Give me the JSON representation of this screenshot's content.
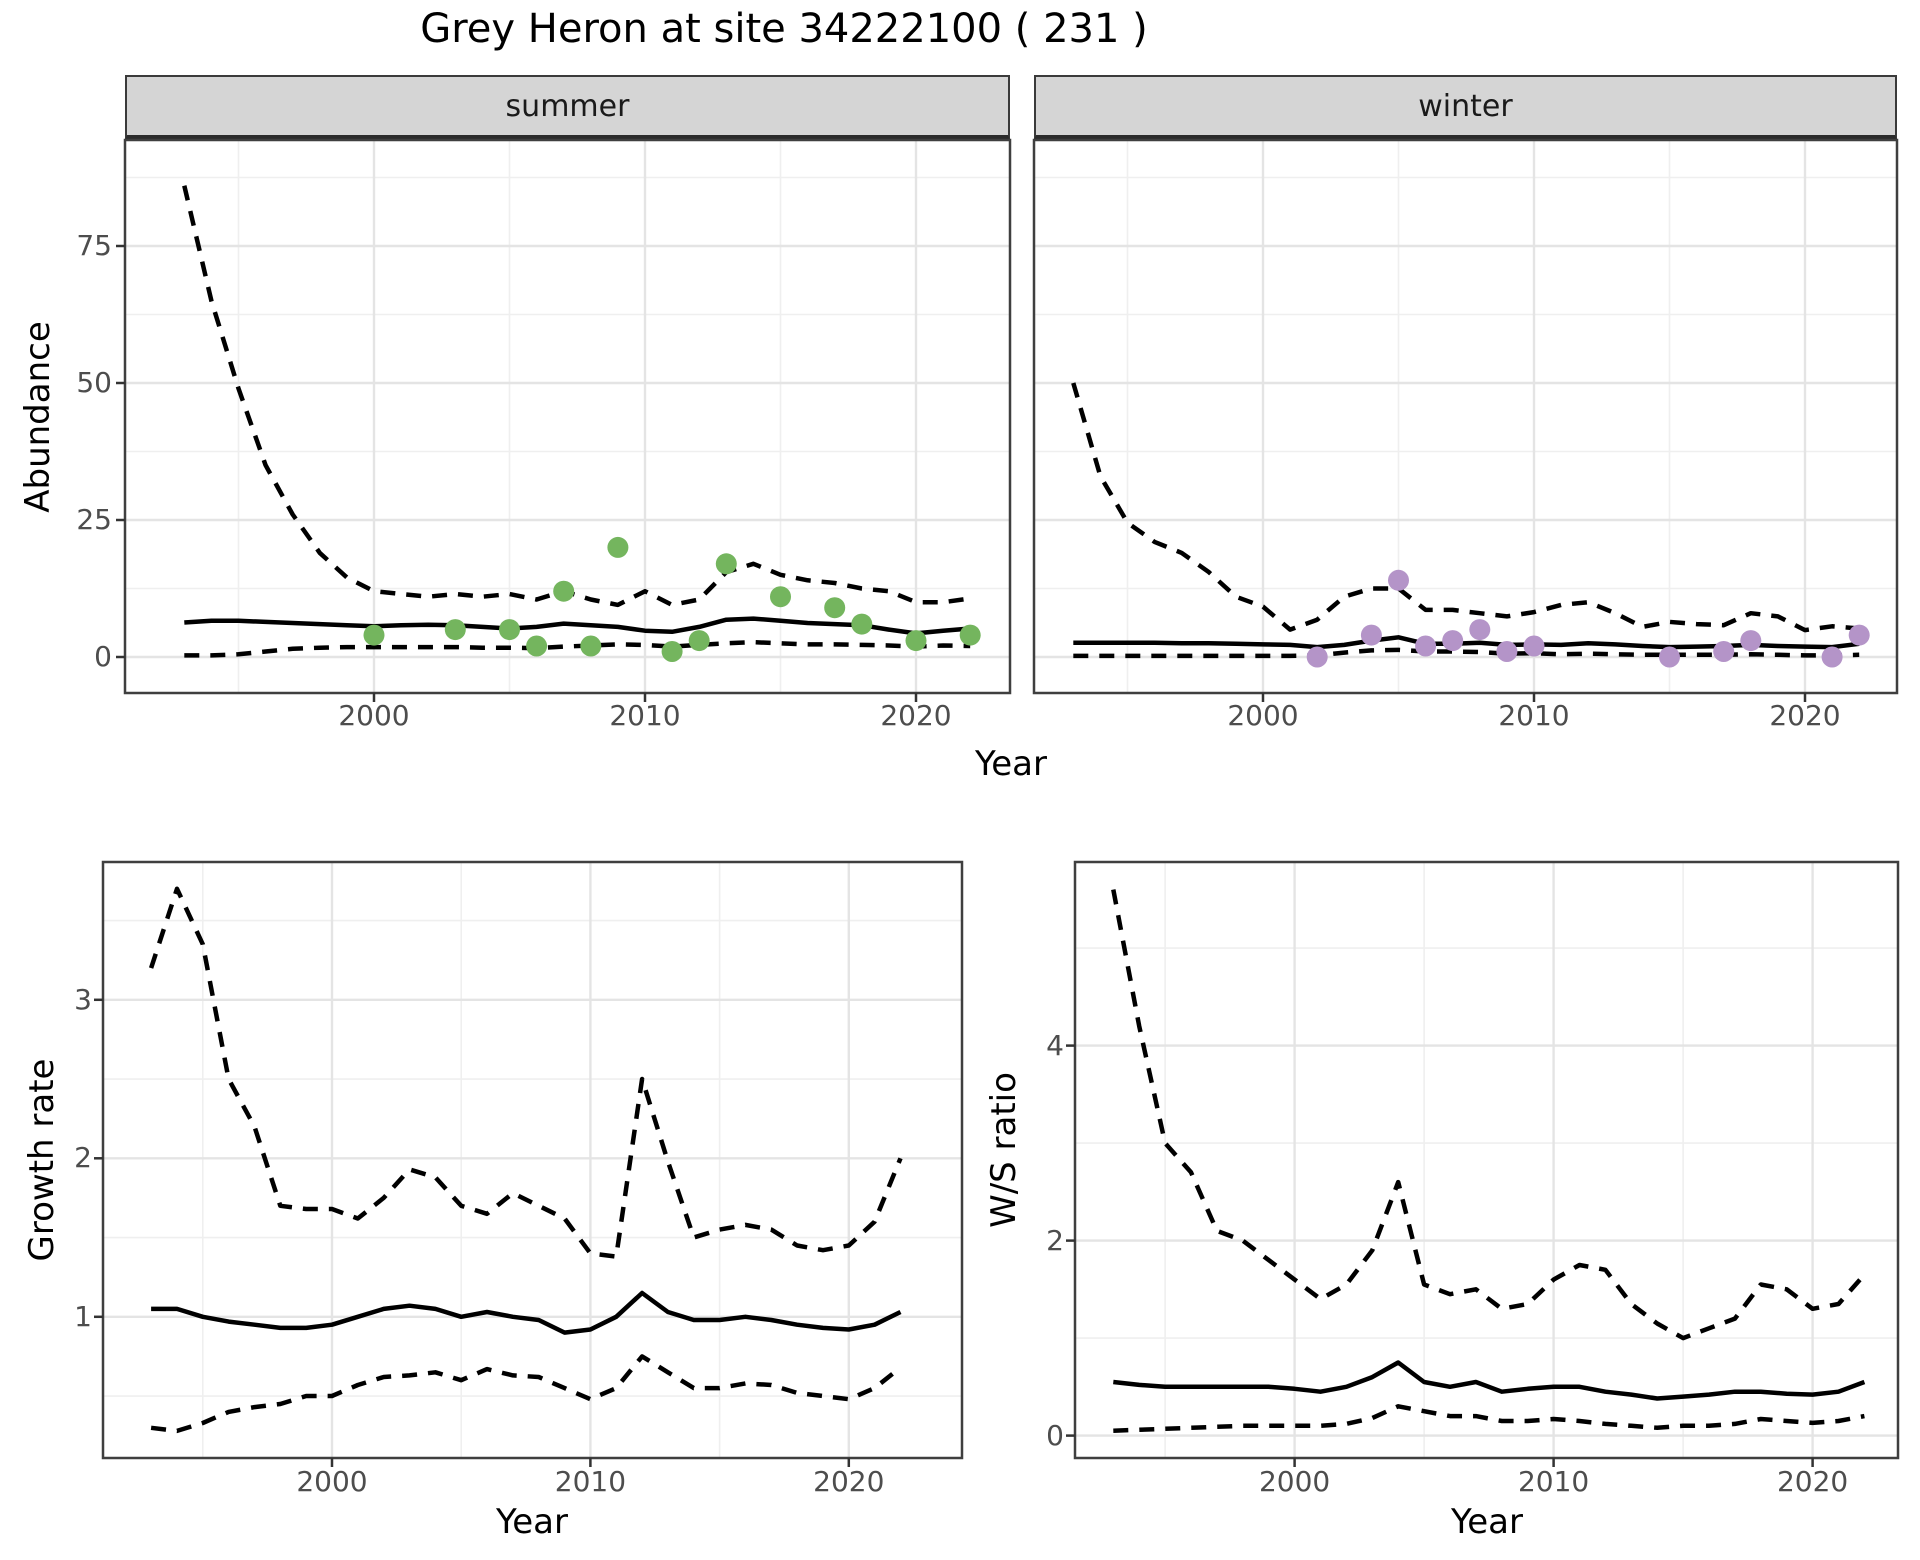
{
  "title": "Grey Heron at site 34222100 ( 231 )",
  "colors": {
    "summer_points": "#74b55e",
    "winter_points": "#b494c8",
    "line": "#000000",
    "grid_major": "#e4e4e4",
    "grid_minor": "#efefef",
    "panel_border": "#3f3f3f",
    "strip_bg": "#d5d5d5",
    "tick_text": "#4d4d4d"
  },
  "chart_data": [
    {
      "type": "line",
      "key": "abundance-summer",
      "facet": "summer",
      "ylabel": "Abundance",
      "xlabel": "Year",
      "x_ticks": [
        2000,
        2010,
        2020
      ],
      "y_ticks": [
        0,
        25,
        50,
        75
      ],
      "xlim": [
        1990.8,
        2023.5
      ],
      "ylim": [
        -6.6,
        94.3
      ],
      "grid": true,
      "legend": "none",
      "x": [
        1993,
        1994,
        1995,
        1996,
        1997,
        1998,
        1999,
        2000,
        2001,
        2002,
        2003,
        2004,
        2005,
        2006,
        2007,
        2008,
        2009,
        2010,
        2011,
        2012,
        2013,
        2014,
        2015,
        2016,
        2017,
        2018,
        2019,
        2020,
        2021,
        2022
      ],
      "series": [
        {
          "name": "upper-95-ci",
          "style": "dashed",
          "values": [
            86,
            65,
            49,
            35,
            26,
            19,
            14.5,
            12,
            11.5,
            11,
            11.5,
            11,
            11.5,
            10.5,
            12,
            10.5,
            9.5,
            12,
            9.5,
            10.5,
            15.5,
            17,
            15,
            14,
            13.5,
            12.5,
            12,
            10,
            10,
            10.7
          ]
        },
        {
          "name": "median-estimate",
          "style": "solid",
          "values": [
            6.3,
            6.6,
            6.6,
            6.4,
            6.2,
            6.0,
            5.8,
            5.6,
            5.8,
            5.9,
            5.8,
            5.5,
            5.2,
            5.5,
            6.1,
            5.8,
            5.5,
            4.8,
            4.6,
            5.5,
            6.8,
            7.0,
            6.6,
            6.2,
            6.0,
            5.8,
            5.0,
            4.3,
            4.8,
            5.2
          ]
        },
        {
          "name": "lower-95-ci",
          "style": "dashed",
          "values": [
            0.3,
            0.3,
            0.5,
            1.0,
            1.5,
            1.7,
            1.8,
            1.8,
            1.8,
            1.8,
            1.8,
            1.7,
            1.7,
            1.6,
            1.9,
            2.1,
            2.3,
            2.2,
            1.9,
            2.2,
            2.5,
            2.7,
            2.5,
            2.3,
            2.3,
            2.2,
            2.1,
            1.9,
            2.1,
            2.0
          ]
        }
      ],
      "points": {
        "name": "observed-abundance",
        "color": "#74b55e",
        "x": [
          2000,
          2003,
          2005,
          2006,
          2007,
          2008,
          2009,
          2011,
          2012,
          2013,
          2015,
          2017,
          2018,
          2020,
          2022
        ],
        "y": [
          4,
          5,
          5,
          2,
          12,
          2,
          20,
          1,
          3,
          17,
          11,
          9,
          6,
          3,
          4
        ]
      }
    },
    {
      "type": "line",
      "key": "abundance-winter",
      "facet": "winter",
      "ylabel": "Abundance",
      "xlabel": "Year",
      "x_ticks": [
        2000,
        2010,
        2020
      ],
      "y_ticks": [
        0,
        25,
        50,
        75
      ],
      "xlim": [
        1990.8,
        2023.5
      ],
      "ylim": [
        -6.6,
        94.3
      ],
      "grid": true,
      "legend": "none",
      "x": [
        1993,
        1994,
        1995,
        1996,
        1997,
        1998,
        1999,
        2000,
        2001,
        2002,
        2003,
        2004,
        2005,
        2006,
        2007,
        2008,
        2009,
        2010,
        2011,
        2012,
        2013,
        2014,
        2015,
        2016,
        2017,
        2018,
        2019,
        2020,
        2021,
        2022
      ],
      "series": [
        {
          "name": "upper-95-ci",
          "style": "dashed",
          "values": [
            50,
            33,
            24.5,
            21,
            19,
            15.5,
            11,
            9.2,
            5,
            6.8,
            11,
            12.5,
            12.5,
            8.6,
            8.6,
            8,
            7.4,
            8.2,
            9.5,
            10,
            8,
            5.5,
            6.4,
            6,
            5.8,
            8,
            7.4,
            4.9,
            5.6,
            5.2
          ]
        },
        {
          "name": "median-estimate",
          "style": "solid",
          "values": [
            2.6,
            2.6,
            2.6,
            2.6,
            2.5,
            2.5,
            2.4,
            2.3,
            2.2,
            1.8,
            2.2,
            3.0,
            3.6,
            2.4,
            2.4,
            2.6,
            2.2,
            2.3,
            2.2,
            2.5,
            2.3,
            2.0,
            1.8,
            1.9,
            2.0,
            2.2,
            2.0,
            1.9,
            1.8,
            2.4
          ]
        },
        {
          "name": "lower-95-ci",
          "style": "dashed",
          "values": [
            0.2,
            0.2,
            0.2,
            0.2,
            0.2,
            0.2,
            0.2,
            0.2,
            0.2,
            0.3,
            0.8,
            1.2,
            1.3,
            1.0,
            1.0,
            0.9,
            0.6,
            0.7,
            0.5,
            0.6,
            0.5,
            0.4,
            0.4,
            0.4,
            0.4,
            0.5,
            0.4,
            0.3,
            0.3,
            0.4
          ]
        }
      ],
      "points": {
        "name": "observed-abundance",
        "color": "#b494c8",
        "x": [
          2002,
          2004,
          2005,
          2006,
          2007,
          2008,
          2009,
          2010,
          2015,
          2017,
          2018,
          2021,
          2022
        ],
        "y": [
          0,
          4,
          14,
          2,
          3,
          5,
          1,
          2,
          0,
          1,
          3,
          0,
          4
        ]
      }
    },
    {
      "type": "line",
      "key": "growth-rate",
      "facet": "",
      "ylabel": "Growth rate",
      "xlabel": "Year",
      "x_ticks": [
        2000,
        2010,
        2020
      ],
      "y_ticks": [
        1,
        2,
        3
      ],
      "xlim": [
        1991.1,
        2024.4
      ],
      "ylim": [
        0.11,
        3.87
      ],
      "grid": true,
      "legend": "none",
      "x": [
        1993,
        1994,
        1995,
        1996,
        1997,
        1998,
        1999,
        2000,
        2001,
        2002,
        2003,
        2004,
        2005,
        2006,
        2007,
        2008,
        2009,
        2010,
        2011,
        2012,
        2013,
        2014,
        2015,
        2016,
        2017,
        2018,
        2019,
        2020,
        2021,
        2022
      ],
      "series": [
        {
          "name": "upper-95-ci",
          "style": "dashed",
          "values": [
            3.2,
            3.7,
            3.35,
            2.5,
            2.2,
            1.7,
            1.68,
            1.68,
            1.62,
            1.75,
            1.93,
            1.88,
            1.7,
            1.65,
            1.78,
            1.7,
            1.62,
            1.4,
            1.38,
            2.5,
            1.98,
            1.5,
            1.55,
            1.58,
            1.55,
            1.45,
            1.42,
            1.45,
            1.6,
            2.0
          ]
        },
        {
          "name": "median-estimate",
          "style": "solid",
          "values": [
            1.05,
            1.05,
            1.0,
            0.97,
            0.95,
            0.93,
            0.93,
            0.95,
            1.0,
            1.05,
            1.07,
            1.05,
            1.0,
            1.03,
            1.0,
            0.98,
            0.9,
            0.92,
            1.0,
            1.15,
            1.03,
            0.98,
            0.98,
            1.0,
            0.98,
            0.95,
            0.93,
            0.92,
            0.95,
            1.03
          ]
        },
        {
          "name": "lower-95-ci",
          "style": "dashed",
          "values": [
            0.3,
            0.28,
            0.33,
            0.4,
            0.43,
            0.45,
            0.5,
            0.5,
            0.57,
            0.62,
            0.63,
            0.65,
            0.6,
            0.67,
            0.63,
            0.62,
            0.55,
            0.48,
            0.55,
            0.75,
            0.65,
            0.55,
            0.55,
            0.58,
            0.57,
            0.52,
            0.5,
            0.48,
            0.55,
            0.68
          ]
        }
      ],
      "points": null
    },
    {
      "type": "line",
      "key": "ws-ratio",
      "facet": "",
      "ylabel": "W/S ratio",
      "xlabel": "Year",
      "x_ticks": [
        2000,
        2010,
        2020
      ],
      "y_ticks": [
        0,
        2,
        4
      ],
      "xlim": [
        1991.5,
        2023.3
      ],
      "ylim": [
        -0.23,
        5.88
      ],
      "grid": true,
      "legend": "none",
      "x": [
        1993,
        1994,
        1995,
        1996,
        1997,
        1998,
        1999,
        2000,
        2001,
        2002,
        2003,
        2004,
        2005,
        2006,
        2007,
        2008,
        2009,
        2010,
        2011,
        2012,
        2013,
        2014,
        2015,
        2016,
        2017,
        2018,
        2019,
        2020,
        2021,
        2022
      ],
      "series": [
        {
          "name": "upper-95-ci",
          "style": "dashed",
          "values": [
            5.6,
            4.2,
            3.0,
            2.7,
            2.1,
            2.0,
            1.8,
            1.6,
            1.4,
            1.55,
            1.9,
            2.6,
            1.55,
            1.45,
            1.5,
            1.3,
            1.35,
            1.6,
            1.75,
            1.7,
            1.35,
            1.15,
            1.0,
            1.1,
            1.2,
            1.55,
            1.5,
            1.3,
            1.35,
            1.65
          ]
        },
        {
          "name": "median-estimate",
          "style": "solid",
          "values": [
            0.55,
            0.52,
            0.5,
            0.5,
            0.5,
            0.5,
            0.5,
            0.48,
            0.45,
            0.5,
            0.6,
            0.75,
            0.55,
            0.5,
            0.55,
            0.45,
            0.48,
            0.5,
            0.5,
            0.45,
            0.42,
            0.38,
            0.4,
            0.42,
            0.45,
            0.45,
            0.43,
            0.42,
            0.45,
            0.55
          ]
        },
        {
          "name": "lower-95-ci",
          "style": "dashed",
          "values": [
            0.05,
            0.06,
            0.07,
            0.08,
            0.09,
            0.1,
            0.1,
            0.1,
            0.1,
            0.12,
            0.18,
            0.3,
            0.25,
            0.2,
            0.2,
            0.15,
            0.15,
            0.17,
            0.15,
            0.12,
            0.1,
            0.08,
            0.1,
            0.1,
            0.12,
            0.17,
            0.15,
            0.13,
            0.15,
            0.2
          ]
        }
      ],
      "points": null
    }
  ]
}
